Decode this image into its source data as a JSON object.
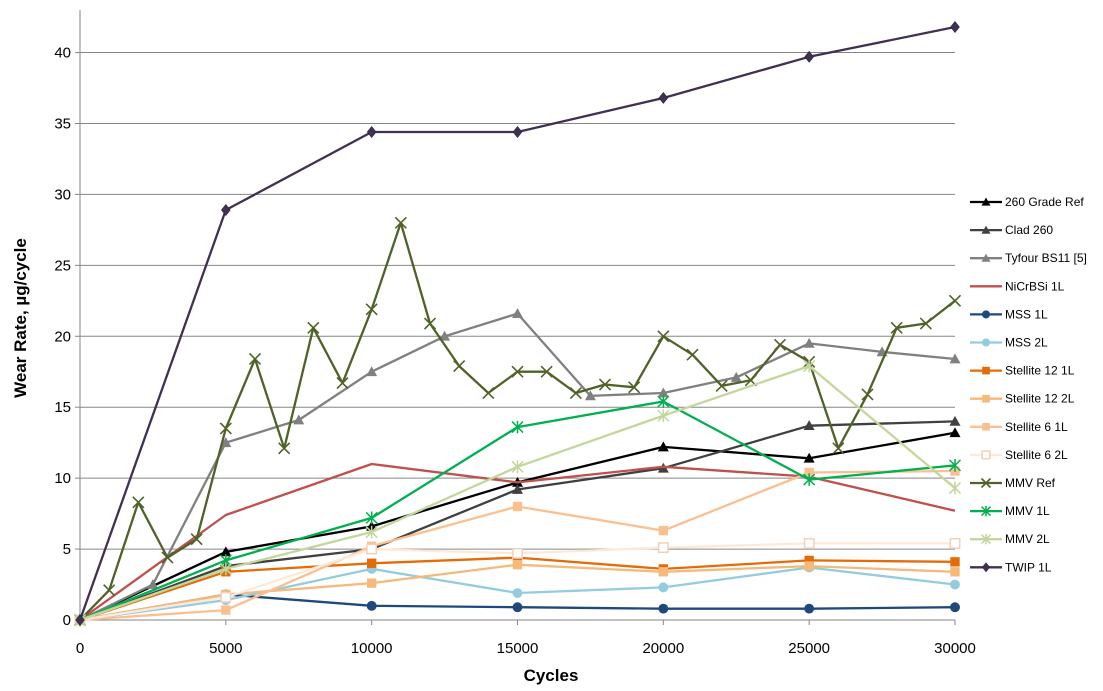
{
  "chart_data": {
    "type": "line",
    "title": "",
    "xlabel": "Cycles",
    "ylabel": "Wear Rate, µg/cycle",
    "xlim": [
      0,
      30000
    ],
    "ylim": [
      0,
      43
    ],
    "xticks": [
      0,
      5000,
      10000,
      15000,
      20000,
      25000,
      30000
    ],
    "yticks": [
      0,
      5,
      10,
      15,
      20,
      25,
      30,
      35,
      40
    ],
    "grid": "horizontal",
    "legend_position": "right",
    "series": [
      {
        "name": "260 Grade Ref",
        "color": "#000000",
        "marker": "triangle",
        "x": [
          0,
          5000,
          10000,
          15000,
          20000,
          25000,
          30000
        ],
        "y": [
          0,
          4.8,
          6.6,
          9.7,
          12.2,
          11.4,
          13.2
        ]
      },
      {
        "name": "Clad 260",
        "color": "#404040",
        "marker": "triangle",
        "x": [
          0,
          5000,
          10000,
          15000,
          20000,
          25000,
          30000
        ],
        "y": [
          0,
          3.8,
          5.0,
          9.2,
          10.7,
          13.7,
          14.0
        ]
      },
      {
        "name": "Tyfour BS11 [5]",
        "color": "#808080",
        "marker": "triangle",
        "x": [
          0,
          2500,
          5000,
          7500,
          10000,
          12500,
          15000,
          17500,
          20000,
          22500,
          25000,
          27500,
          30000
        ],
        "y": [
          0,
          2.5,
          12.5,
          14.1,
          17.5,
          20.0,
          21.6,
          15.8,
          16.0,
          17.1,
          19.5,
          18.9,
          18.4
        ]
      },
      {
        "name": "NiCrBSi 1L",
        "color": "#c0504d",
        "marker": "none",
        "x": [
          0,
          5000,
          10000,
          15000,
          20000,
          25000,
          30000
        ],
        "y": [
          0,
          7.4,
          11.0,
          9.7,
          10.8,
          10.1,
          7.7
        ]
      },
      {
        "name": "MSS 1L",
        "color": "#1f497d",
        "marker": "circle",
        "x": [
          0,
          5000,
          10000,
          15000,
          20000,
          25000,
          30000
        ],
        "y": [
          0,
          1.8,
          1.0,
          0.9,
          0.8,
          0.8,
          0.9
        ]
      },
      {
        "name": "MSS 2L",
        "color": "#93cddd",
        "marker": "circle",
        "x": [
          0,
          5000,
          10000,
          15000,
          20000,
          25000,
          30000
        ],
        "y": [
          0,
          1.4,
          3.6,
          1.9,
          2.3,
          3.7,
          2.5
        ]
      },
      {
        "name": "Stellite 12 1L",
        "color": "#e36c09",
        "marker": "square",
        "x": [
          0,
          5000,
          10000,
          15000,
          20000,
          25000,
          30000
        ],
        "y": [
          0,
          3.4,
          4.0,
          4.4,
          3.6,
          4.2,
          4.1
        ]
      },
      {
        "name": "Stellite 12 2L",
        "color": "#f5b97a",
        "marker": "square",
        "x": [
          0,
          5000,
          10000,
          15000,
          20000,
          25000,
          30000
        ],
        "y": [
          0,
          1.8,
          2.6,
          3.9,
          3.4,
          3.8,
          3.4
        ]
      },
      {
        "name": "Stellite 6 1L",
        "color": "#fac090",
        "marker": "square",
        "x": [
          0,
          5000,
          10000,
          15000,
          20000,
          25000,
          30000
        ],
        "y": [
          0,
          0.7,
          5.2,
          8.0,
          6.3,
          10.4,
          10.5
        ]
      },
      {
        "name": "Stellite 6 2L",
        "color": "#fde9d9",
        "marker": "square-open",
        "x": [
          0,
          5000,
          10000,
          15000,
          20000,
          25000,
          30000
        ],
        "y": [
          0,
          1.6,
          5.0,
          4.7,
          5.1,
          5.4,
          5.4
        ]
      },
      {
        "name": "MMV Ref",
        "color": "#4f6228",
        "marker": "x",
        "x": [
          0,
          1000,
          2000,
          3000,
          4000,
          5000,
          6000,
          7000,
          8000,
          9000,
          10000,
          11000,
          12000,
          13000,
          14000,
          15000,
          16000,
          17000,
          18000,
          19000,
          20000,
          21000,
          22000,
          23000,
          24000,
          25000,
          26000,
          27000,
          28000,
          29000,
          30000
        ],
        "y": [
          0,
          2.1,
          8.3,
          4.4,
          5.7,
          13.5,
          18.4,
          12.1,
          20.6,
          16.7,
          21.9,
          28.0,
          20.9,
          17.9,
          16.0,
          17.5,
          17.5,
          16.0,
          16.6,
          16.4,
          20.0,
          18.7,
          16.5,
          16.9,
          19.4,
          18.2,
          12.1,
          15.9,
          20.6,
          20.9,
          22.5
        ]
      },
      {
        "name": "MMV 1L",
        "color": "#00b050",
        "marker": "star",
        "x": [
          0,
          5000,
          10000,
          15000,
          20000,
          25000,
          30000
        ],
        "y": [
          0,
          4.2,
          7.2,
          13.6,
          15.4,
          9.9,
          10.9
        ]
      },
      {
        "name": "MMV 2L",
        "color": "#c3d69b",
        "marker": "star",
        "x": [
          0,
          5000,
          10000,
          15000,
          20000,
          25000,
          30000
        ],
        "y": [
          0,
          3.6,
          6.2,
          10.8,
          14.4,
          17.9,
          9.3
        ]
      },
      {
        "name": "TWIP 1L",
        "color": "#403151",
        "marker": "diamond",
        "x": [
          0,
          5000,
          10000,
          15000,
          20000,
          25000,
          30000
        ],
        "y": [
          0,
          28.9,
          34.4,
          34.4,
          36.8,
          39.7,
          41.8
        ]
      }
    ]
  }
}
